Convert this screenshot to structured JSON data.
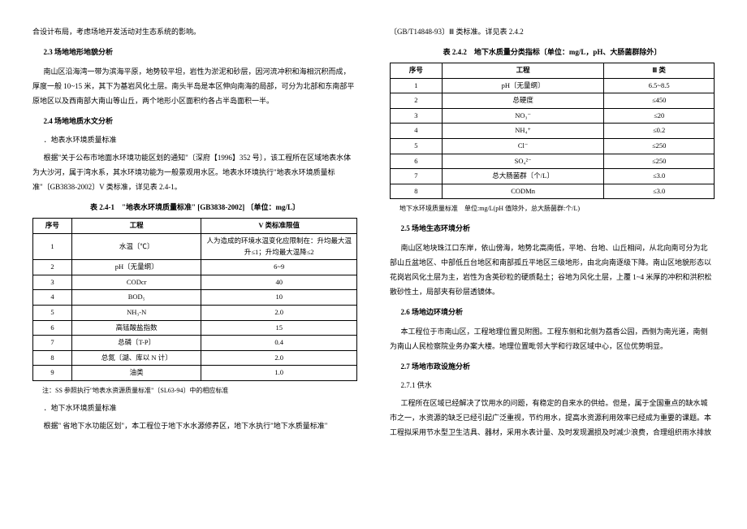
{
  "left": {
    "intro_line": "合设计布局，考虑场地开发活动对生态系统的影响。",
    "h23": "2.3 场地地形地貌分析",
    "p23": "南山区沿海湾一带为滨海平原，地势较平坦，岩性为淤泥和砂层，因河流冲积和海相沉积而成，厚度一般 10~15 米，其下为基岩风化土层。南头半岛是本区伸向南海的局部，可分为北部和东南部平原地区以及西南部大南山等山丘，两个地形小区面积约各占半岛面积一半。",
    "h24": "2.4 场地地质水文分析",
    "sub1": "．地表水环境质量标准",
    "p24a": "根据\"关于公布市地面水环境功能区划的通知\"〔深府【1996】352 号〕，该工程所在区域地表水体为大沙河，属于湾水系，其水环境功能为一般景观用水区。地表水环境执行\"地表水环境质量标准\"〔GB3838-2002〕V 类标准，详见表 2.4-1。",
    "table1_caption": "表 2.4-1　\"地表水环境质量标准\" [GB3838-2002] 〔单位：mg/L〕",
    "table1_headers": [
      "序号",
      "工程",
      "V 类标准限值"
    ],
    "table1_rows": [
      [
        "1",
        "水温〔℃〕",
        "人为造成的环境水温变化应限制在：升均最大温升≤1；升均最大温降≤2"
      ],
      [
        "2",
        "pH〔无量纲〕",
        "6~9"
      ],
      [
        "3",
        "CODcr",
        "40"
      ],
      [
        "4",
        "BOD₅",
        "10"
      ],
      [
        "5",
        "NH₃-N",
        "2.0"
      ],
      [
        "6",
        "高锰酸盐指数",
        "15"
      ],
      [
        "7",
        "总磷〔T-P〕",
        "0.4"
      ],
      [
        "8",
        "总氮〔湖、库以 N 计〕",
        "2.0"
      ],
      [
        "9",
        "油类",
        "1.0"
      ]
    ],
    "note1": "注：SS 参照执行\"地表水资源质量标准\"〔SL63-94〕中的相应标准",
    "sub2": "．地下水环境质量标准",
    "p24b": "根据\" 省地下水功能区划\"，本工程位于地下水水源修养区，地下水执行\"地下水质量标准\""
  },
  "right": {
    "top_line": "〔GB/T14848-93〕Ⅲ 类标准。详见表 2.4.2",
    "table2_caption": "表 2.4.2　地下水质量分类指标〔单位：mg/L，pH、大肠菌群除外〕",
    "table2_headers": [
      "序号",
      "工程",
      "Ⅲ 类"
    ],
    "table2_rows": [
      [
        "1",
        "pH〔无量纲〕",
        "6.5~8.5"
      ],
      [
        "2",
        "总硬度",
        "≤450"
      ],
      [
        "3",
        "NO₃⁻",
        "≤20"
      ],
      [
        "4",
        "NH₄⁺",
        "≤0.2"
      ],
      [
        "5",
        "Cl⁻",
        "≤250"
      ],
      [
        "6",
        "SO₄²⁻",
        "≤250"
      ],
      [
        "7",
        "总大肠菌群〔个/L〕",
        "≤3.0"
      ],
      [
        "8",
        "CODMn",
        "≤3.0"
      ]
    ],
    "note2": "地下水环境质量标准　单位:mg/L(pH 值除外，总大肠菌群:个/L)",
    "h25": "2.5 场地生态环境分析",
    "p25": "南山区地块珠江口东岸，依山傍海，地势北高南低，平地、台地、山丘相间，从北向南可分为北部山丘盆地区、中部低丘台地区和南部孤丘平地区三级地形，由北向南逐级下降。南山区地貌形态以花岗岩风化土层为主，岩性为含英砂粒的硬质黏土；谷地为风化土层，上覆 1~4 米厚的冲积和洪积松散砂性土，局部夹有砂层透镜体。",
    "h26": "2.6 场地边环境分析",
    "p26": "本工程位于市南山区，工程地理位置见附图。工程东侧和北侧为荔香公园，西侧为南光道，南侧为南山人民检察院业务办案大楼。地理位置毗邻大学和行政区域中心，区位优势明显。",
    "h27": "2.7 场地市政设施分析",
    "h271": "2.7.1 供水",
    "p271": "工程所在区域已经解决了饮用水的问题，有稳定的自来水的供给。但是，属于全国重点的缺水城市之一，水资源的缺乏已经引起广泛重视，节约用水，提高水资源利用效率已经成为重要的课题。本工程拟采用节水型卫生洁具、器材，采用水表计量、及时发现漏损及时减少浪费，合理组织雨水排放"
  }
}
